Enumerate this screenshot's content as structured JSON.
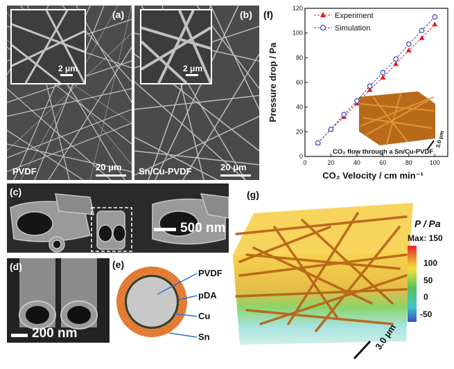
{
  "panels": {
    "a": {
      "label": "(a)",
      "material": "PVDF",
      "scale": "20 μm",
      "inset_scale": "2 μm"
    },
    "b": {
      "label": "(b)",
      "material": "Sn/Cu-PVDF",
      "scale": "20 μm",
      "inset_scale": "2 μm"
    },
    "c": {
      "label": "(c)",
      "scale": "500 nm"
    },
    "d": {
      "label": "(d)",
      "scale": "200 nm"
    },
    "e": {
      "label": "(e)",
      "layers": [
        "PVDF",
        "pDA",
        "Cu",
        "Sn"
      ],
      "colors": {
        "core": "#c8c8c8",
        "pda": "#2f3f2f",
        "sn": "#e8823a"
      }
    },
    "f": {
      "label": "(f)",
      "scale": "3.0 μm",
      "caption": "CO₂ flow through a Sn/Cu-PVDF"
    },
    "g": {
      "label": "(g)",
      "scale": "3.0 μm",
      "colorbar": {
        "title": "P / Pa",
        "max_label": "Max: 150",
        "ticks": [
          "100",
          "50",
          "0",
          "-50"
        ],
        "colors": [
          "#e8262a",
          "#f4e33a",
          "#58c25a",
          "#3ec7c7",
          "#3a4fc7"
        ]
      }
    }
  },
  "chart_data": {
    "type": "line",
    "ylabel": "Pressure drop / Pa",
    "xlabel": "CO₂ Velocity / cm min⁻¹",
    "xlim": [
      0,
      110
    ],
    "ylim": [
      0,
      120
    ],
    "xticks": [
      "0",
      "20",
      "40",
      "60",
      "80",
      "100"
    ],
    "yticks": [
      "0",
      "20",
      "40",
      "60",
      "80",
      "100",
      "120"
    ],
    "legend_position": "top-left",
    "series": [
      {
        "name": "Experiment",
        "color": "#e02020",
        "marker": "triangle",
        "x": [
          10,
          20,
          30,
          40,
          50,
          60,
          70,
          80,
          90,
          100
        ],
        "y": [
          11,
          22,
          32,
          43,
          54,
          64,
          75,
          86,
          96,
          107
        ]
      },
      {
        "name": "Simulation",
        "color": "#3040b0",
        "marker": "circle",
        "x": [
          10,
          20,
          30,
          40,
          50,
          60,
          70,
          80,
          90,
          100
        ],
        "y": [
          11,
          22,
          34,
          45,
          57,
          68,
          79,
          91,
          102,
          113
        ]
      }
    ]
  }
}
